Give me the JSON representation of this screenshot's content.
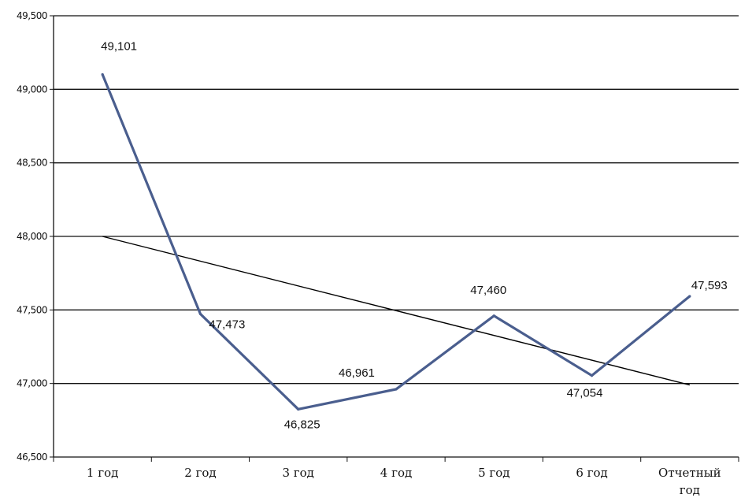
{
  "chart_data": {
    "type": "line",
    "title": "",
    "xlabel": "",
    "ylabel": "",
    "categories": [
      "1 год",
      "2 год",
      "3 год",
      "4 год",
      "5 год",
      "6 год",
      "Отчетный год"
    ],
    "series": [
      {
        "values": [
          49.101,
          47.473,
          46.825,
          46.961,
          47.46,
          47.054,
          47.593
        ],
        "color": "#4a5e8e"
      }
    ],
    "data_labels": [
      "49,101",
      "47,473",
      "46,825",
      "46,961",
      "47,460",
      "47,054",
      "47,593"
    ],
    "trendline": {
      "type": "linear",
      "start": 48.0,
      "end": 46.99,
      "color": "#000000"
    },
    "ylim": [
      46.5,
      49.5
    ],
    "yticks": [
      46.5,
      47.0,
      47.5,
      48.0,
      48.5,
      49.0,
      49.5
    ],
    "ytick_labels": [
      "46,500",
      "47,000",
      "47,500",
      "48,000",
      "48,500",
      "49,000",
      "49,500"
    ],
    "grid": true,
    "legend": "none"
  }
}
